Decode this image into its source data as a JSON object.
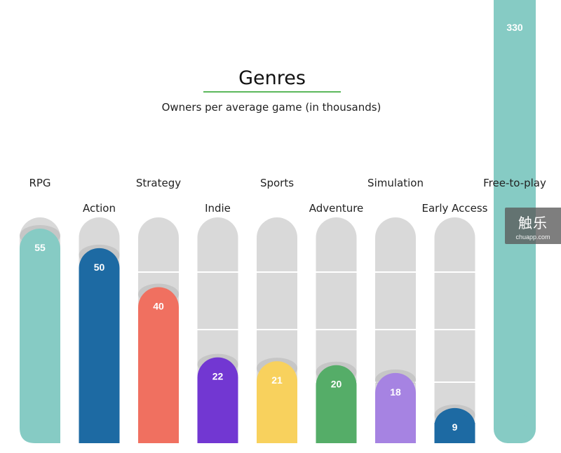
{
  "chart_data": {
    "type": "bar",
    "title": "Genres",
    "subtitle": "Owners per average game (in thousands)",
    "categories": [
      "RPG",
      "Action",
      "Strategy",
      "Indie",
      "Sports",
      "Adventure",
      "Simulation",
      "Early Access",
      "Free-to-play"
    ],
    "values": [
      55,
      50,
      40,
      22,
      21,
      20,
      18,
      9,
      330
    ],
    "colors": [
      "#86cbc4",
      "#1d6aa3",
      "#f07060",
      "#7237d2",
      "#f8d15d",
      "#55ad68",
      "#a683e2",
      "#1d6aa3",
      "#86cbc4"
    ],
    "value_labels": [
      "55",
      "50",
      "40",
      "22",
      "21",
      "20",
      "18",
      "9",
      "330"
    ],
    "track_color": "#d9d9d9",
    "grid": true,
    "legend": "none"
  },
  "watermark": {
    "logo": "触乐",
    "url": "chuapp.com"
  }
}
